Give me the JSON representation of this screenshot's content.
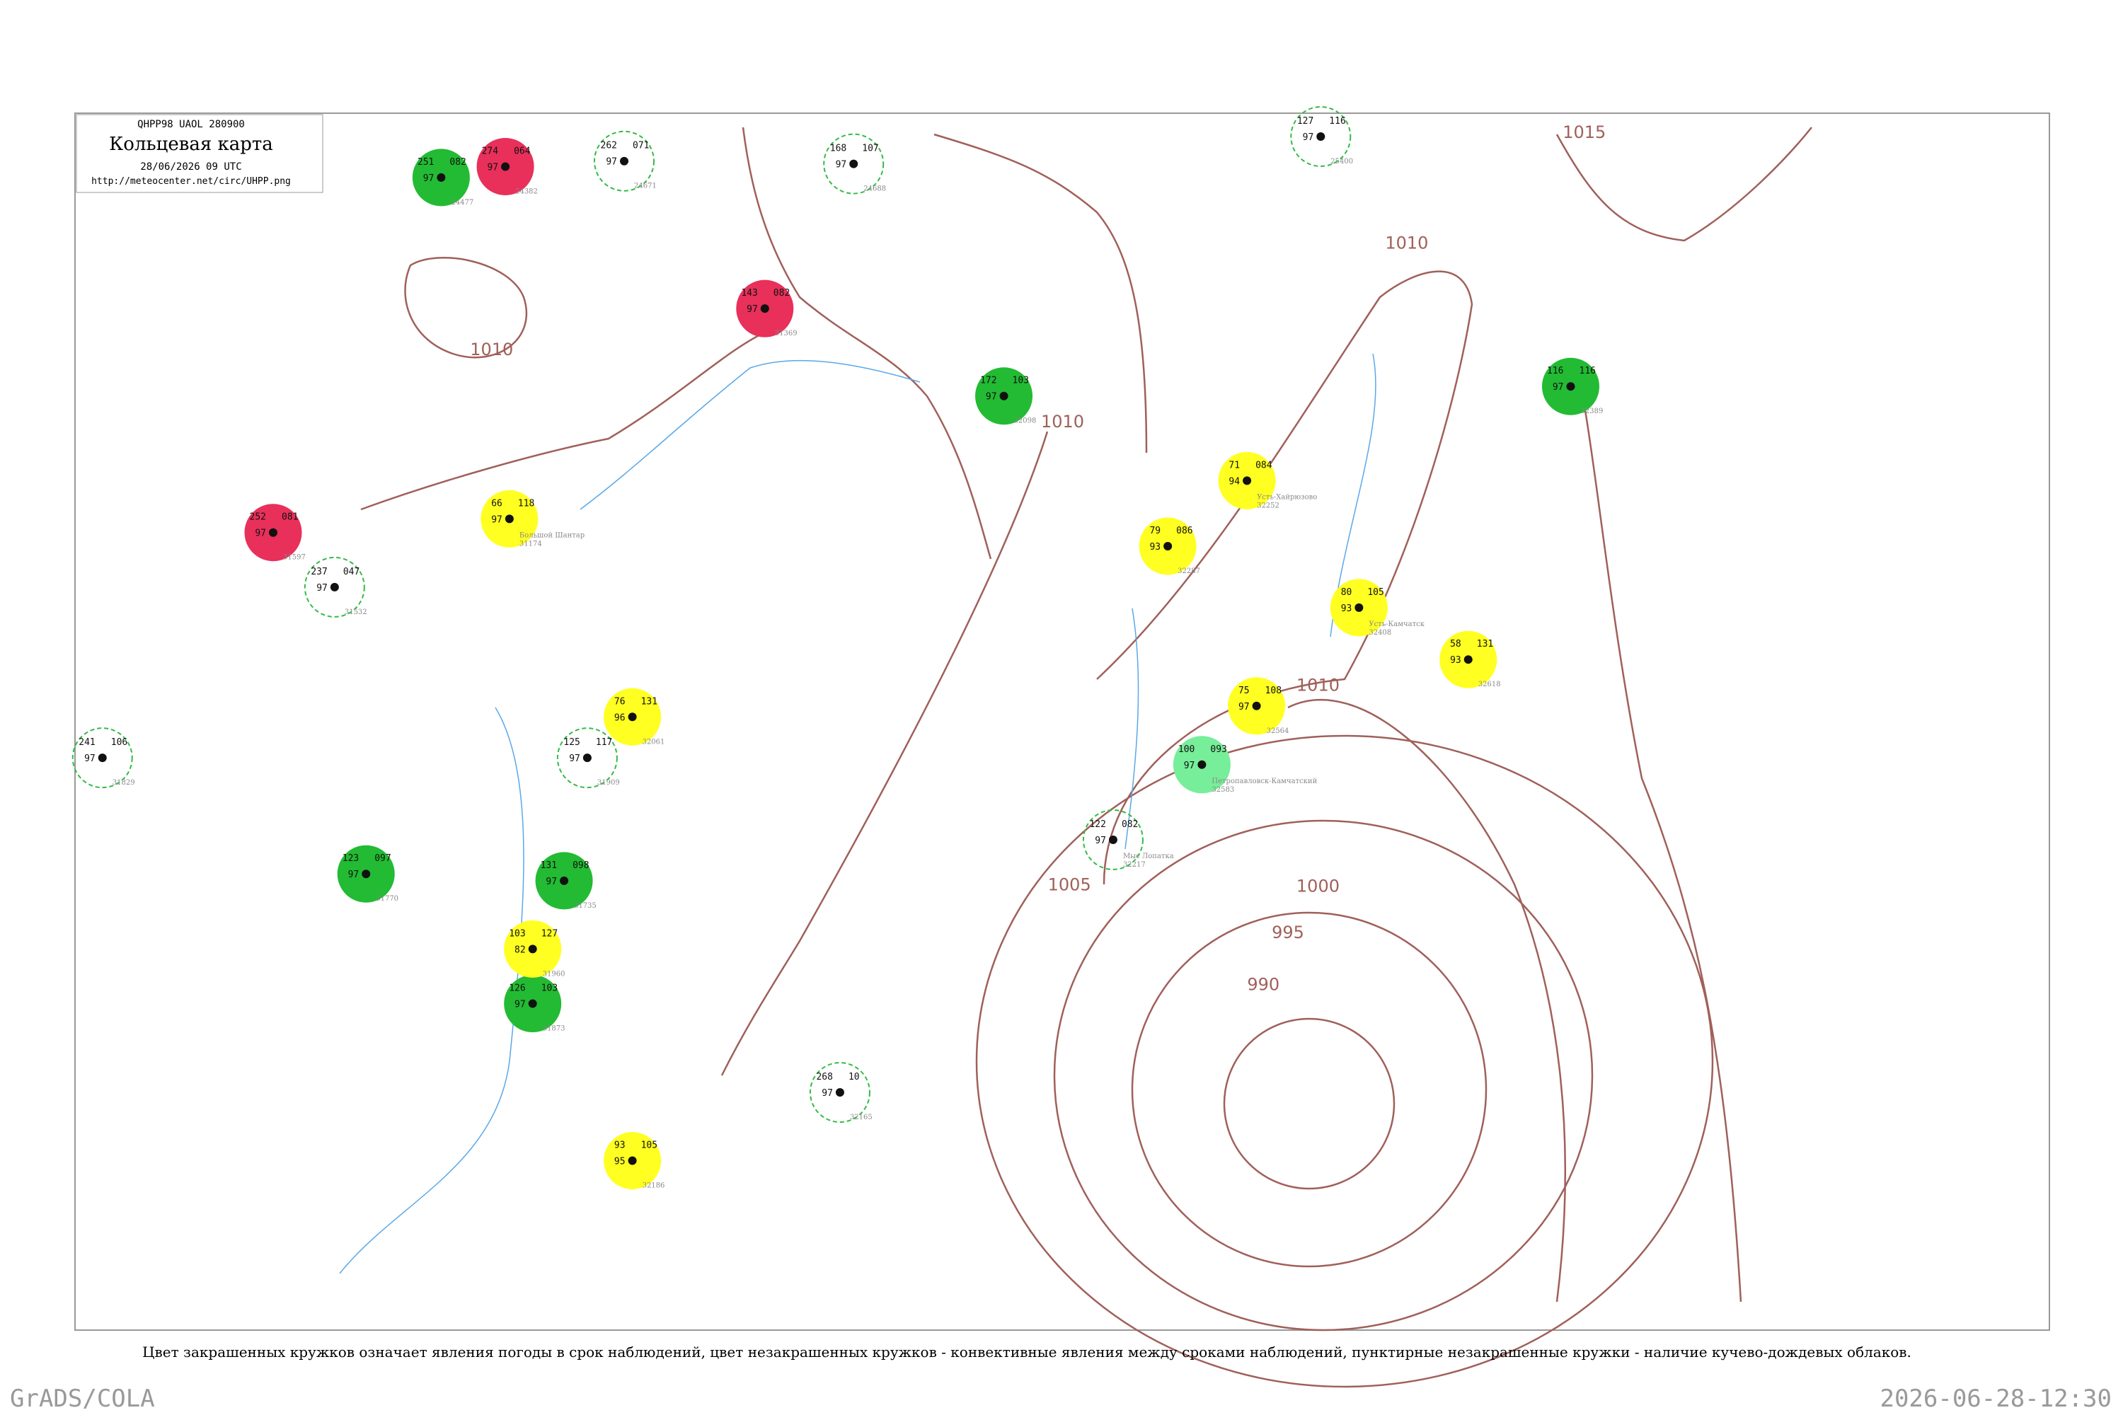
{
  "header": {
    "code": "QHPP98  UAOL  280900",
    "title": "Кольцевая карта",
    "date": "28/06/2026 09 UTC",
    "url": "http://meteocenter.net/circ/UHPP.png"
  },
  "isobars": [
    "1010",
    "1010",
    "1010",
    "1010",
    "1015",
    "1005",
    "1000",
    "995",
    "990"
  ],
  "stations": [
    {
      "a": "274",
      "b": "97",
      "c": "064",
      "id": "24382",
      "name": "",
      "color": "#e8305a"
    },
    {
      "a": "143",
      "b": "97",
      "c": "082",
      "id": "31369",
      "name": "",
      "color": "#e8305a"
    },
    {
      "a": "252",
      "b": "97",
      "c": "081",
      "id": "31597",
      "name": "",
      "color": "#e8305a"
    },
    {
      "a": "251",
      "b": "97",
      "c": "082",
      "id": "24477",
      "name": "",
      "color": "#22bb33"
    },
    {
      "a": "172",
      "b": "97",
      "c": "103",
      "id": "32098",
      "name": "",
      "color": "#22bb33"
    },
    {
      "a": "116",
      "b": "97",
      "c": "116",
      "id": "32389",
      "name": "",
      "color": "#22bb33"
    },
    {
      "a": "123",
      "b": "97",
      "c": "097",
      "id": "31770",
      "name": "",
      "color": "#22bb33"
    },
    {
      "a": "131",
      "b": "97",
      "c": "098",
      "id": "31735",
      "name": "",
      "color": "#22bb33"
    },
    {
      "a": "126",
      "b": "97",
      "c": "103",
      "id": "31873",
      "name": "",
      "color": "#22bb33"
    },
    {
      "a": "66",
      "b": "97",
      "c": "118",
      "id": "31174",
      "name": "Большой Шантар",
      "color": "#ffff22"
    },
    {
      "a": "71",
      "b": "94",
      "c": "084",
      "id": "32252",
      "name": "Усть-Хайрюзово",
      "color": "#ffff22"
    },
    {
      "a": "79",
      "b": "93",
      "c": "086",
      "id": "32287",
      "name": "",
      "color": "#ffff22"
    },
    {
      "a": "80",
      "b": "93",
      "c": "105",
      "id": "32408",
      "name": "Усть-Камчатск",
      "color": "#ffff22"
    },
    {
      "a": "58",
      "b": "93",
      "c": "131",
      "id": "32618",
      "name": "",
      "color": "#ffff22"
    },
    {
      "a": "75",
      "b": "97",
      "c": "108",
      "id": "32564",
      "name": "",
      "color": "#ffff22"
    },
    {
      "a": "76",
      "b": "96",
      "c": "131",
      "id": "32061",
      "name": "",
      "color": "#ffff22"
    },
    {
      "a": "93",
      "b": "95",
      "c": "105",
      "id": "32186",
      "name": "",
      "color": "#ffff22"
    },
    {
      "a": "103",
      "b": "82",
      "c": "127",
      "id": "31960",
      "name": "",
      "color": "#ffff22"
    },
    {
      "a": "100",
      "b": "97",
      "c": "093",
      "id": "32583",
      "name": "Петропавловск-Камчатский",
      "color": "#77ee99"
    },
    {
      "a": "262",
      "b": "97",
      "c": "071",
      "id": "24671",
      "name": "",
      "color": "none"
    },
    {
      "a": "168",
      "b": "97",
      "c": "107",
      "id": "24688",
      "name": "",
      "color": "none"
    },
    {
      "a": "127",
      "b": "97",
      "c": "116",
      "id": "25400",
      "name": "",
      "color": "none"
    },
    {
      "a": "237",
      "b": "97",
      "c": "047",
      "id": "31532",
      "name": "",
      "color": "none"
    },
    {
      "a": "241",
      "b": "97",
      "c": "106",
      "id": "31829",
      "name": "",
      "color": "none"
    },
    {
      "a": "125",
      "b": "97",
      "c": "117",
      "id": "31909",
      "name": "",
      "color": "none"
    },
    {
      "a": "122",
      "b": "97",
      "c": "082",
      "id": "32217",
      "name": "Мыс Лопатка",
      "color": "none"
    },
    {
      "a": "268",
      "b": "97",
      "c": "10",
      "id": "32165",
      "name": "",
      "color": "none"
    }
  ],
  "caption": "Цвет закрашенных кружков означает явления погоды в срок наблюдений, цвет незакрашенных кружков - конвективные явления между сроками наблюдений, пунктирные незакрашенные кружки - наличие кучево-дождевых облаков.",
  "footer_left": "GrADS/COLA",
  "footer_right": "2026-06-28-12:30"
}
